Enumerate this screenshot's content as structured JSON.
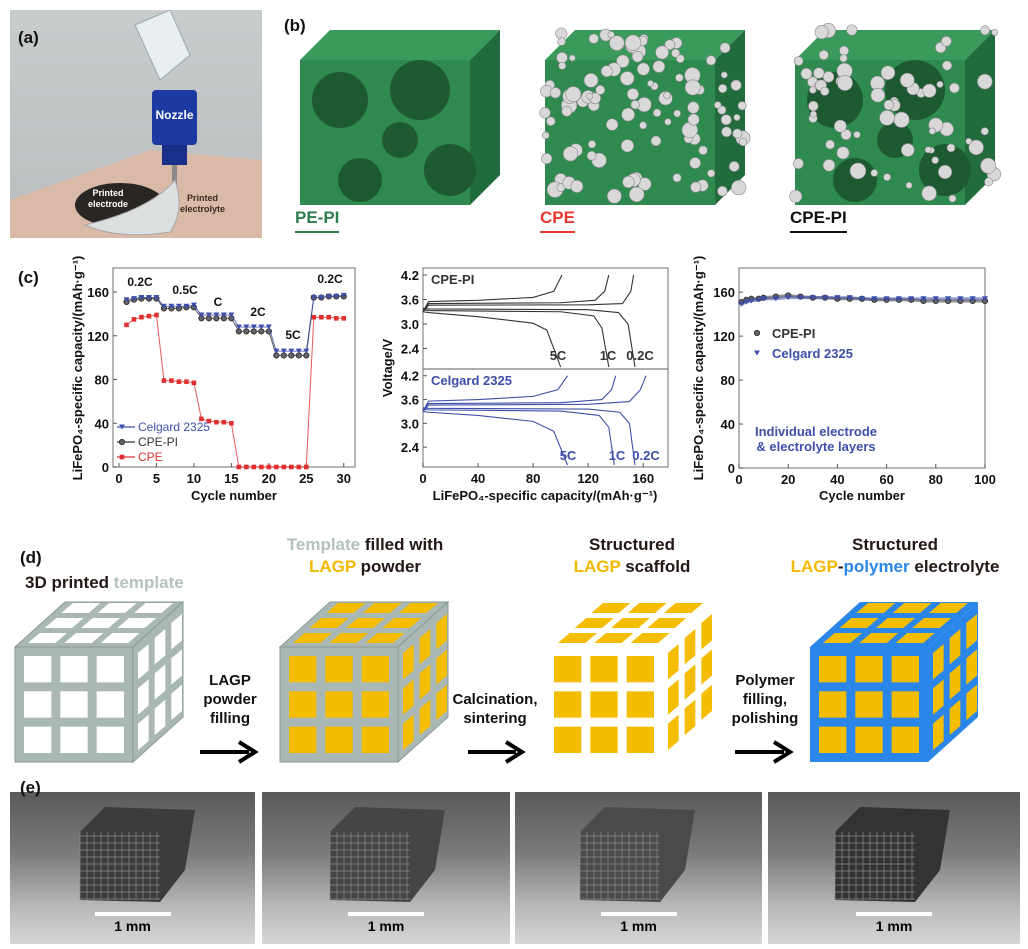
{
  "panel_a": {
    "label": "(a)",
    "nozzle": "Nozzle",
    "printed_electrode": [
      "Printed",
      "electrode"
    ],
    "printed_electrolyte": [
      "Printed",
      "electrolyte"
    ]
  },
  "panel_b": {
    "label": "(b)",
    "structures": [
      {
        "name": "PE-PI",
        "color": "#2e7d4f"
      },
      {
        "name": "CPE",
        "color": "#e8382f"
      },
      {
        "name": "CPE-PI",
        "color": "#111111"
      }
    ],
    "cube_color": "#2f8a4f"
  },
  "panel_c": {
    "label": "(c)"
  },
  "chart_data": [
    {
      "type": "line",
      "xlabel": "Cycle number",
      "ylabel": "LiFePO₄-specific capacity/(mAh·g⁻¹)",
      "xlim": [
        -0.8,
        31.5
      ],
      "ylim": [
        0,
        182
      ],
      "xticks": [
        0,
        5,
        10,
        15,
        20,
        25,
        30
      ],
      "yticks": [
        0,
        40,
        80,
        120,
        160
      ],
      "legend_position": "bottom-left",
      "x": [
        1,
        2,
        3,
        4,
        5,
        6,
        7,
        8,
        9,
        10,
        11,
        12,
        13,
        14,
        15,
        16,
        17,
        18,
        19,
        20,
        21,
        22,
        23,
        24,
        25,
        26,
        27,
        28,
        29,
        30
      ],
      "series": [
        {
          "name": "Celgard 2325",
          "color": "#3d4fa8",
          "marker": "triangle-down",
          "values": [
            153,
            154,
            155,
            155,
            155,
            147,
            147,
            147,
            147,
            148,
            139,
            139,
            139,
            139,
            139,
            128,
            128,
            128,
            128,
            128,
            106,
            106,
            106,
            106,
            106,
            155,
            155,
            156,
            156,
            157
          ]
        },
        {
          "name": "CPE-PI",
          "color": "#333333",
          "marker": "circle",
          "values": [
            151,
            153,
            154,
            154,
            154,
            145,
            145,
            145,
            146,
            146,
            136,
            136,
            136,
            136,
            136,
            124,
            124,
            124,
            124,
            124,
            102,
            102,
            102,
            102,
            102,
            155,
            155,
            156,
            156,
            156
          ]
        },
        {
          "name": "CPE",
          "color": "#e03030",
          "marker": "square",
          "values": [
            130,
            135,
            137,
            138,
            139,
            79,
            79,
            78,
            78,
            77,
            44,
            42,
            41,
            41,
            40,
            0,
            0,
            0,
            0,
            0,
            0,
            0,
            0,
            0,
            0,
            137,
            137,
            137,
            136,
            136
          ]
        }
      ],
      "annotations": [
        "0.2C",
        "0.5C",
        "C",
        "2C",
        "5C",
        "0.2C"
      ]
    },
    {
      "type": "line",
      "xlabel": "LiFePO₄-specific capacity/(mAh·g⁻¹)",
      "ylabel": "Voltage/V",
      "xlim": [
        0,
        178
      ],
      "ylim": [
        1.9,
        4.37
      ],
      "xticks": [
        0,
        40,
        80,
        120,
        160
      ],
      "yticks": [
        2.4,
        3.0,
        3.6,
        4.2
      ],
      "panels": [
        {
          "name": "CPE-PI",
          "color": "#333333",
          "rate_labels": [
            "5C",
            "1C",
            "0.2C"
          ],
          "curves": [
            {
              "rate": "5C",
              "charge": [
                [
                  0,
                  3.3
                ],
                [
                  4,
                  3.55
                ],
                [
                  40,
                  3.58
                ],
                [
                  80,
                  3.65
                ],
                [
                  95,
                  3.8
                ],
                [
                  101,
                  4.2
                ]
              ],
              "discharge": [
                [
                  0,
                  3.3
                ],
                [
                  4,
                  3.28
                ],
                [
                  40,
                  3.18
                ],
                [
                  80,
                  3.02
                ],
                [
                  90,
                  2.85
                ],
                [
                  100,
                  1.95
                ]
              ]
            },
            {
              "rate": "1C",
              "charge": [
                [
                  0,
                  3.3
                ],
                [
                  4,
                  3.5
                ],
                [
                  100,
                  3.52
                ],
                [
                  125,
                  3.58
                ],
                [
                  132,
                  3.8
                ],
                [
                  135,
                  4.2
                ]
              ],
              "discharge": [
                [
                  0,
                  3.35
                ],
                [
                  4,
                  3.33
                ],
                [
                  100,
                  3.3
                ],
                [
                  124,
                  3.2
                ],
                [
                  130,
                  2.9
                ],
                [
                  135,
                  1.95
                ]
              ]
            },
            {
              "rate": "0.2C",
              "charge": [
                [
                  0,
                  3.3
                ],
                [
                  4,
                  3.46
                ],
                [
                  120,
                  3.47
                ],
                [
                  145,
                  3.5
                ],
                [
                  151,
                  3.8
                ],
                [
                  153,
                  4.2
                ]
              ],
              "discharge": [
                [
                  0,
                  3.38
                ],
                [
                  4,
                  3.37
                ],
                [
                  120,
                  3.35
                ],
                [
                  142,
                  3.28
                ],
                [
                  149,
                  3.0
                ],
                [
                  154,
                  1.95
                ]
              ]
            }
          ]
        },
        {
          "name": "Celgard 2325",
          "color": "#3d4fa8",
          "rate_labels": [
            "5C",
            "1C",
            "0.2C"
          ],
          "curves": [
            {
              "rate": "5C",
              "charge": [
                [
                  0,
                  3.3
                ],
                [
                  4,
                  3.56
                ],
                [
                  40,
                  3.6
                ],
                [
                  80,
                  3.68
                ],
                [
                  98,
                  3.85
                ],
                [
                  105,
                  4.2
                ]
              ],
              "discharge": [
                [
                  0,
                  3.3
                ],
                [
                  4,
                  3.28
                ],
                [
                  40,
                  3.2
                ],
                [
                  80,
                  3.05
                ],
                [
                  95,
                  2.8
                ],
                [
                  105,
                  1.95
                ]
              ]
            },
            {
              "rate": "1C",
              "charge": [
                [
                  0,
                  3.3
                ],
                [
                  4,
                  3.5
                ],
                [
                  100,
                  3.52
                ],
                [
                  130,
                  3.6
                ],
                [
                  137,
                  3.85
                ],
                [
                  140,
                  4.2
                ]
              ],
              "discharge": [
                [
                  0,
                  3.36
                ],
                [
                  4,
                  3.34
                ],
                [
                  100,
                  3.31
                ],
                [
                  128,
                  3.2
                ],
                [
                  135,
                  2.9
                ],
                [
                  139,
                  1.95
                ]
              ]
            },
            {
              "rate": "0.2C",
              "charge": [
                [
                  0,
                  3.3
                ],
                [
                  4,
                  3.46
                ],
                [
                  120,
                  3.48
                ],
                [
                  150,
                  3.55
                ],
                [
                  158,
                  3.85
                ],
                [
                  162,
                  4.2
                ]
              ],
              "discharge": [
                [
                  0,
                  3.39
                ],
                [
                  4,
                  3.38
                ],
                [
                  120,
                  3.36
                ],
                [
                  143,
                  3.28
                ],
                [
                  150,
                  3.0
                ],
                [
                  154,
                  1.95
                ]
              ]
            }
          ]
        }
      ]
    },
    {
      "type": "scatter",
      "xlabel": "Cycle number",
      "ylabel": "LiFePO₄-specific capacity/(mAh·g⁻¹)",
      "xlim": [
        0,
        100
      ],
      "ylim": [
        0,
        182
      ],
      "xticks": [
        0,
        20,
        40,
        60,
        80,
        100
      ],
      "yticks": [
        0,
        40,
        80,
        120,
        160
      ],
      "legend_position": "middle-left",
      "x": [
        1,
        3,
        5,
        8,
        10,
        15,
        20,
        25,
        30,
        35,
        40,
        45,
        50,
        55,
        60,
        65,
        70,
        75,
        80,
        85,
        90,
        95,
        100
      ],
      "series": [
        {
          "name": "CPE-PI",
          "color": "#333333",
          "marker": "circle",
          "values": [
            151,
            153,
            154,
            154,
            155,
            156,
            157,
            156,
            155,
            155,
            154,
            154,
            154,
            153,
            153,
            153,
            153,
            152,
            152,
            152,
            152,
            152,
            152
          ]
        },
        {
          "name": "Celgard 2325",
          "color": "#3d4fa8",
          "marker": "triangle-down",
          "values": [
            149,
            151,
            152,
            153,
            154,
            154,
            155,
            155,
            155,
            155,
            155,
            155,
            154,
            154,
            154,
            154,
            154,
            154,
            154,
            154,
            154,
            154,
            154
          ]
        }
      ],
      "annotation": [
        "Individual electrode",
        "& electrolyte layers"
      ]
    }
  ],
  "panel_d": {
    "label": "(d)",
    "steps": [
      {
        "title": [
          {
            "t": "3D printed ",
            "c": "#231815"
          },
          {
            "t": "template",
            "c": "#b4c2bf"
          }
        ]
      },
      {
        "title_line1": [
          {
            "t": "Template",
            "c": "#b4c2bf"
          },
          {
            "t": " filled with",
            "c": "#231815"
          }
        ],
        "title_line2": [
          {
            "t": "LAGP",
            "c": "#f5b800"
          },
          {
            "t": " powder",
            "c": "#231815"
          }
        ]
      },
      {
        "title_line1": [
          {
            "t": "Structured",
            "c": "#231815"
          }
        ],
        "title_line2": [
          {
            "t": "LAGP",
            "c": "#f5b800"
          },
          {
            "t": " scaffold",
            "c": "#231815"
          }
        ]
      },
      {
        "title_line1": [
          {
            "t": "Structured",
            "c": "#231815"
          }
        ],
        "title_line2": [
          {
            "t": "LAGP",
            "c": "#f5b800"
          },
          {
            "t": "-",
            "c": "#231815"
          },
          {
            "t": "polymer",
            "c": "#2a86e8"
          },
          {
            "t": " electrolyte",
            "c": "#231815"
          }
        ]
      }
    ],
    "arrows": [
      [
        "LAGP",
        "powder",
        "filling"
      ],
      [
        "Calcination,",
        "sintering"
      ],
      [
        "Polymer",
        "filling,",
        "polishing"
      ]
    ],
    "colors": {
      "template": "#a9b8b5",
      "lagp": "#f5bd00",
      "polymer": "#2a86e8"
    }
  },
  "panel_e": {
    "label": "(e)",
    "scale_bars": [
      "1 mm",
      "1 mm",
      "1 mm",
      "1 mm"
    ]
  }
}
